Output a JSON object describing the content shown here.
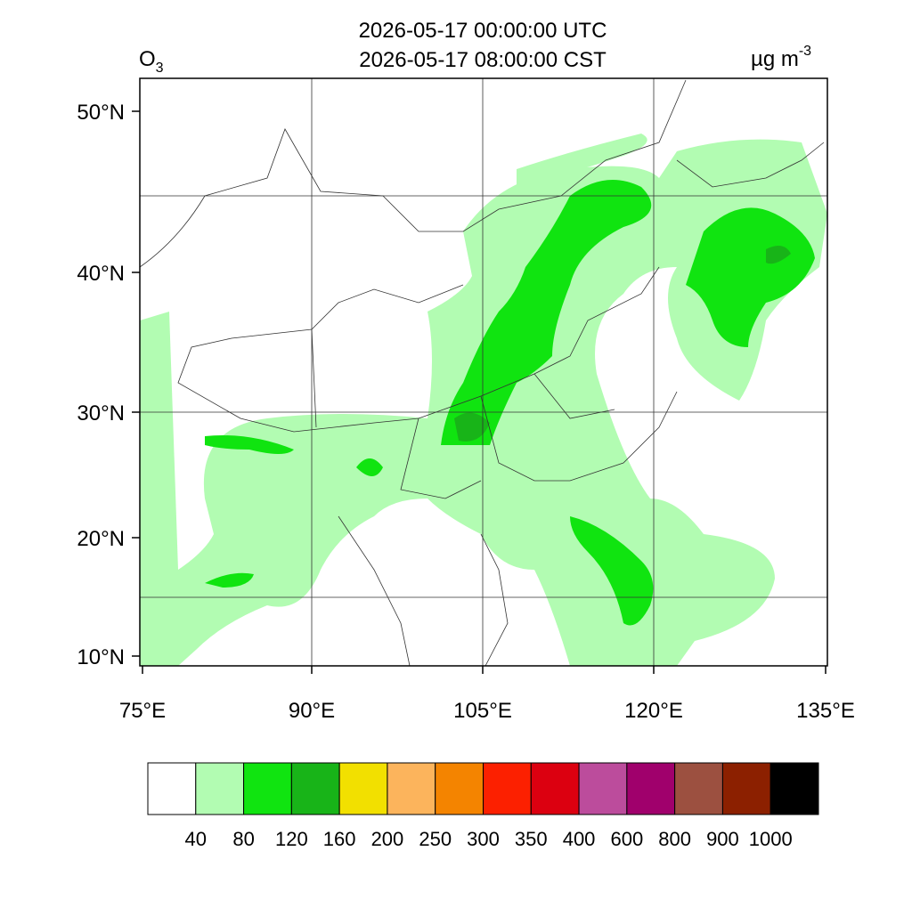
{
  "header": {
    "line1": "2026-05-17 00:00:00 UTC",
    "line2": "2026-05-17 08:00:00 CST"
  },
  "variable": {
    "name": "O",
    "subscript": "3"
  },
  "units": {
    "base": "µg m",
    "exponent": "-3"
  },
  "lat_labels": [
    "50°N",
    "40°N",
    "30°N",
    "20°N",
    "10°N"
  ],
  "lon_labels": [
    "75°E",
    "90°E",
    "105°E",
    "120°E",
    "135°E"
  ],
  "colorbar": {
    "colors": [
      "#ffffff",
      "#b2fcb2",
      "#10e410",
      "#18b418",
      "#f2e000",
      "#fcb45c",
      "#f48400",
      "#fc2000",
      "#dc0010",
      "#bc4c9c",
      "#a0006c",
      "#9c5040",
      "#8c2000",
      "#000000"
    ],
    "labels": [
      "40",
      "80",
      "120",
      "160",
      "200",
      "250",
      "300",
      "350",
      "400",
      "600",
      "800",
      "900",
      "1000"
    ]
  }
}
